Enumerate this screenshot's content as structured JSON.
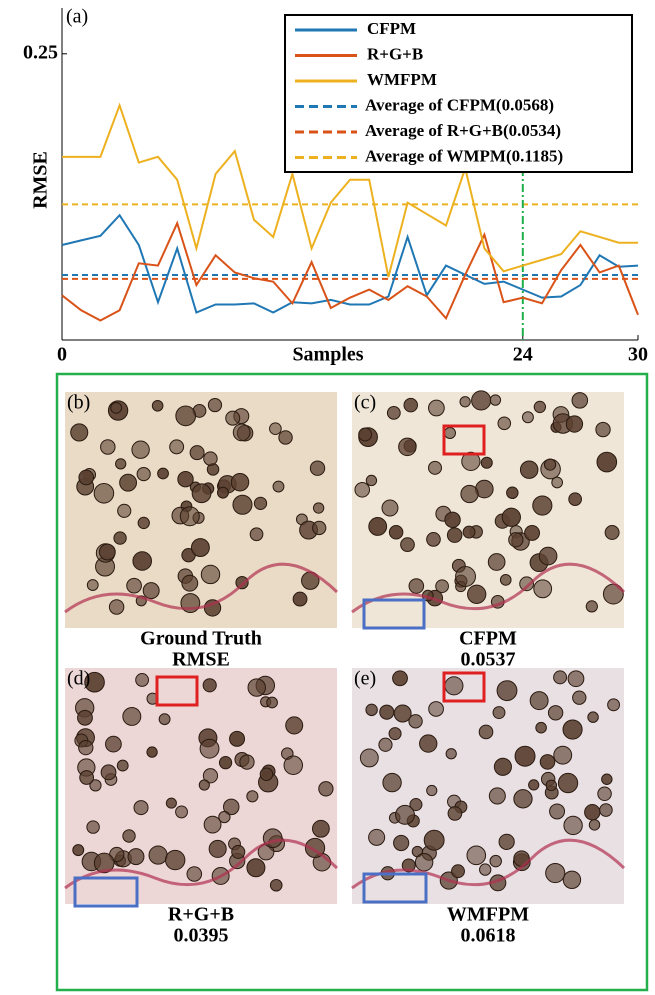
{
  "chart_data": {
    "type": "line",
    "panel_label": "(a)",
    "xlabel": "Samples",
    "ylabel": "RMSE",
    "x": [
      0,
      1,
      2,
      3,
      4,
      5,
      6,
      7,
      8,
      9,
      10,
      11,
      12,
      13,
      14,
      15,
      16,
      17,
      18,
      19,
      20,
      21,
      22,
      23,
      24,
      25,
      26,
      27,
      28,
      29,
      30
    ],
    "series": [
      {
        "name": "CFPM",
        "color": "#1f77b4",
        "values": [
          0.083,
          0.087,
          0.091,
          0.109,
          0.083,
          0.033,
          0.08,
          0.024,
          0.031,
          0.031,
          0.032,
          0.024,
          0.033,
          0.032,
          0.035,
          0.031,
          0.031,
          0.038,
          0.09,
          0.039,
          0.065,
          0.057,
          0.049,
          0.051,
          0.044,
          0.037,
          0.038,
          0.048,
          0.074,
          0.064,
          0.065
        ]
      },
      {
        "name": "R+G+B",
        "color": "#d95319",
        "values": [
          0.039,
          0.026,
          0.017,
          0.026,
          0.067,
          0.065,
          0.102,
          0.048,
          0.074,
          0.059,
          0.054,
          0.051,
          0.032,
          0.068,
          0.028,
          0.037,
          0.044,
          0.035,
          0.047,
          0.038,
          0.019,
          0.057,
          0.092,
          0.033,
          0.037,
          0.032,
          0.061,
          0.083,
          0.059,
          0.065,
          0.022
        ]
      },
      {
        "name": "WMFPM",
        "color": "#edb120",
        "values": [
          0.16,
          0.16,
          0.16,
          0.205,
          0.155,
          0.16,
          0.14,
          0.08,
          0.145,
          0.165,
          0.105,
          0.09,
          0.145,
          0.08,
          0.12,
          0.14,
          0.14,
          0.055,
          0.12,
          0.11,
          0.1,
          0.15,
          0.08,
          0.06,
          0.065,
          0.07,
          0.075,
          0.095,
          0.09,
          0.085,
          0.085
        ]
      }
    ],
    "reference_lines": [
      {
        "name": "Average of CFPM(0.0568)",
        "color": "#1f77b4",
        "value": 0.0568
      },
      {
        "name": "Average of R+G+B(0.0534)",
        "color": "#d95319",
        "value": 0.0534
      },
      {
        "name": "Average of WMPM(0.1185)",
        "color": "#edb120",
        "value": 0.1185
      }
    ],
    "vline": {
      "x": 24,
      "color": "#1db04a"
    },
    "xlim": [
      0,
      30
    ],
    "xticks": [
      0,
      24,
      30
    ],
    "ylim": [
      0,
      0.29
    ],
    "yticks": [
      0.25
    ],
    "legend": "upper right"
  },
  "panels": [
    {
      "label": "(b)",
      "caption": [
        "Ground Truth",
        "RMSE"
      ]
    },
    {
      "label": "(c)",
      "caption": [
        "CFPM",
        "0.0537"
      ]
    },
    {
      "label": "(d)",
      "caption": [
        "R+G+B",
        "0.0395"
      ]
    },
    {
      "label": "(e)",
      "caption": [
        "WMFPM",
        "0.0618"
      ]
    }
  ]
}
